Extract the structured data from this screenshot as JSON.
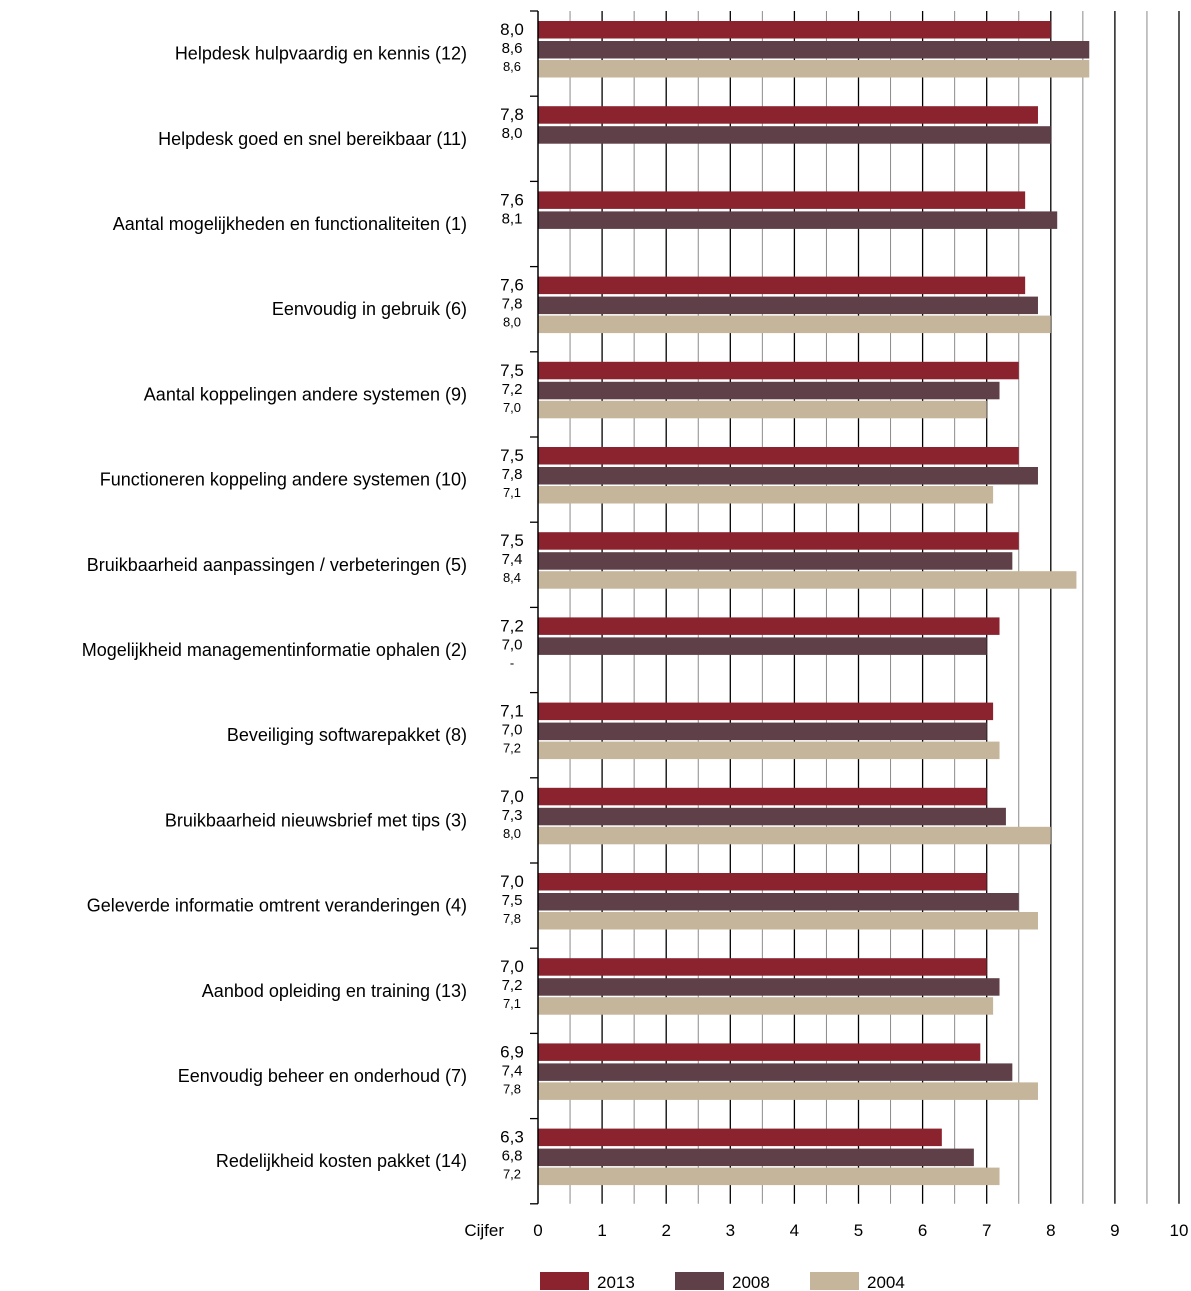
{
  "chart_data": {
    "type": "bar",
    "orientation": "horizontal",
    "categories": [
      "Helpdesk hulpvaardig en kennis (12)",
      "Helpdesk goed en snel bereikbaar (11)",
      "Aantal mogelijkheden  en functionaliteiten (1)",
      "Eenvoudig in gebruik (6)",
      "Aantal koppelingen andere systemen (9)",
      "Functioneren koppeling andere systemen (10)",
      "Bruikbaarheid aanpassingen / verbeteringen (5)",
      "Mogelijkheid managementinformatie ophalen (2)",
      "Beveiliging softwarepakket (8)",
      "Bruikbaarheid nieuwsbrief met tips (3)",
      "Geleverde informatie omtrent veranderingen (4)",
      "Aanbod opleiding en training (13)",
      "Eenvoudig beheer en onderhoud (7)",
      "Redelijkheid kosten pakket (14)"
    ],
    "series": [
      {
        "name": "2013",
        "color": "#8b232e",
        "values": [
          8.0,
          7.8,
          7.6,
          7.6,
          7.5,
          7.5,
          7.5,
          7.2,
          7.1,
          7.0,
          7.0,
          7.0,
          6.9,
          6.3
        ],
        "labels": [
          "8,0",
          "7,8",
          "7,6",
          "7,6",
          "7,5",
          "7,5",
          "7,5",
          "7,2",
          "7,1",
          "7,0",
          "7,0",
          "7,0",
          "6,9",
          "6,3"
        ]
      },
      {
        "name": "2008",
        "color": "#5f4049",
        "values": [
          8.6,
          8.0,
          8.1,
          7.8,
          7.2,
          7.8,
          7.4,
          7.0,
          7.0,
          7.3,
          7.5,
          7.2,
          7.4,
          6.8
        ],
        "labels": [
          "8,6",
          "8,0",
          "8,1",
          "7,8",
          "7,2",
          "7,8",
          "7,4",
          "7,0",
          "7,0",
          "7,3",
          "7,5",
          "7,2",
          "7,4",
          "6,8"
        ]
      },
      {
        "name": "2004",
        "color": "#c5b59b",
        "values": [
          8.6,
          null,
          null,
          8.0,
          7.0,
          7.1,
          8.4,
          null,
          7.2,
          8.0,
          7.8,
          7.1,
          7.8,
          7.2
        ],
        "labels": [
          "8,6",
          "",
          "",
          "8,0",
          "7,0",
          "7,1",
          "8,4",
          "-",
          "7,2",
          "8,0",
          "7,8",
          "7,1",
          "7,8",
          "7,2"
        ]
      }
    ],
    "xlabel": "Cijfer",
    "xlim": [
      0,
      10
    ],
    "xticks": [
      "0",
      "1",
      "2",
      "3",
      "4",
      "5",
      "6",
      "7",
      "8",
      "9",
      "10"
    ],
    "grid": true,
    "legend_position": "bottom"
  }
}
